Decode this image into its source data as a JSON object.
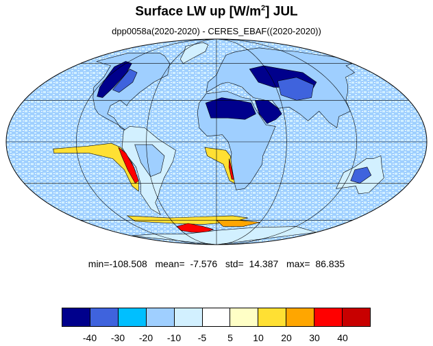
{
  "title": {
    "main": "Surface LW up [W/m",
    "sup": "2",
    "tail": "]  JUL"
  },
  "subtitle": "dpp0058a(2020-2020) - CERES_EBAF((2020-2020))",
  "stats": {
    "min_label": "min=",
    "min": "-108.508",
    "mean_label": "mean=",
    "mean": "-7.576",
    "std_label": "std=",
    "std": "14.387",
    "max_label": "max=",
    "max": "86.835"
  },
  "colorbar": {
    "colors": [
      "#00008c",
      "#3f63dd",
      "#00bfff",
      "#9fcfff",
      "#d2f0ff",
      "#ffffff",
      "#ffffc6",
      "#ffe033",
      "#ffa600",
      "#ff0000",
      "#c80000"
    ],
    "labels": [
      "-40",
      "-30",
      "-20",
      "-10",
      "-5",
      "5",
      "10",
      "20",
      "30",
      "40"
    ]
  },
  "map": {
    "projection": "mollweide",
    "graticule_lon": [
      -120,
      -60,
      0,
      60,
      120
    ],
    "graticule_lat": [
      -60,
      -30,
      0,
      30,
      60
    ],
    "features": [
      {
        "name": "north-america",
        "fill": "#9fcfff",
        "pts": [
          [
            -165,
            62
          ],
          [
            -150,
            70
          ],
          [
            -125,
            70
          ],
          [
            -95,
            70
          ],
          [
            -80,
            67
          ],
          [
            -62,
            60
          ],
          [
            -55,
            50
          ],
          [
            -66,
            44
          ],
          [
            -75,
            36
          ],
          [
            -81,
            29
          ],
          [
            -82,
            26
          ],
          [
            -90,
            30
          ],
          [
            -97,
            26
          ],
          [
            -97,
            20
          ],
          [
            -90,
            17
          ],
          [
            -83,
            10
          ],
          [
            -78,
            8
          ],
          [
            -85,
            12
          ],
          [
            -95,
            16
          ],
          [
            -105,
            20
          ],
          [
            -110,
            24
          ],
          [
            -117,
            32
          ],
          [
            -124,
            40
          ],
          [
            -124,
            48
          ],
          [
            -135,
            58
          ],
          [
            -150,
            60
          ]
        ]
      },
      {
        "name": "na-dark-west",
        "fill": "#00008c",
        "pts": [
          [
            -125,
            62
          ],
          [
            -112,
            60
          ],
          [
            -104,
            52
          ],
          [
            -104,
            40
          ],
          [
            -108,
            32
          ],
          [
            -114,
            33
          ],
          [
            -118,
            40
          ],
          [
            -122,
            50
          ],
          [
            -128,
            57
          ]
        ]
      },
      {
        "name": "na-blue-center",
        "fill": "#3f63dd",
        "pts": [
          [
            -105,
            55
          ],
          [
            -92,
            52
          ],
          [
            -88,
            44
          ],
          [
            -95,
            36
          ],
          [
            -103,
            38
          ]
        ]
      },
      {
        "name": "greenland",
        "fill": "#d2f0ff",
        "pts": [
          [
            -72,
            78
          ],
          [
            -45,
            83
          ],
          [
            -22,
            80
          ],
          [
            -20,
            72
          ],
          [
            -35,
            65
          ],
          [
            -44,
            60
          ],
          [
            -52,
            64
          ],
          [
            -58,
            72
          ]
        ]
      },
      {
        "name": "south-america",
        "fill": "#d2f0ff",
        "pts": [
          [
            -80,
            8
          ],
          [
            -75,
            11
          ],
          [
            -62,
            10
          ],
          [
            -50,
            2
          ],
          [
            -35,
            -6
          ],
          [
            -38,
            -14
          ],
          [
            -48,
            -26
          ],
          [
            -55,
            -35
          ],
          [
            -58,
            -39
          ],
          [
            -65,
            -45
          ],
          [
            -68,
            -55
          ],
          [
            -74,
            -50
          ],
          [
            -75,
            -38
          ],
          [
            -71,
            -30
          ],
          [
            -71,
            -18
          ],
          [
            -77,
            -10
          ],
          [
            -81,
            -4
          ]
        ]
      },
      {
        "name": "sa-blue",
        "fill": "#9fcfff",
        "pts": [
          [
            -70,
            -2
          ],
          [
            -55,
            -2
          ],
          [
            -45,
            -10
          ],
          [
            -50,
            -22
          ],
          [
            -60,
            -25
          ],
          [
            -66,
            -15
          ]
        ]
      },
      {
        "name": "europe-asia",
        "fill": "#9fcfff",
        "pts": [
          [
            -10,
            36
          ],
          [
            -9,
            44
          ],
          [
            0,
            50
          ],
          [
            5,
            58
          ],
          [
            15,
            68
          ],
          [
            30,
            71
          ],
          [
            60,
            74
          ],
          [
            90,
            76
          ],
          [
            120,
            73
          ],
          [
            140,
            72
          ],
          [
            165,
            68
          ],
          [
            180,
            66
          ],
          [
            180,
            60
          ],
          [
            165,
            58
          ],
          [
            160,
            52
          ],
          [
            142,
            48
          ],
          [
            135,
            42
          ],
          [
            128,
            36
          ],
          [
            121,
            30
          ],
          [
            120,
            22
          ],
          [
            108,
            18
          ],
          [
            104,
            10
          ],
          [
            98,
            14
          ],
          [
            92,
            22
          ],
          [
            80,
            15
          ],
          [
            74,
            20
          ],
          [
            66,
            25
          ],
          [
            56,
            24
          ],
          [
            52,
            30
          ],
          [
            46,
            30
          ],
          [
            35,
            32
          ],
          [
            30,
            36
          ],
          [
            26,
            40
          ],
          [
            20,
            42
          ],
          [
            12,
            44
          ],
          [
            6,
            43
          ],
          [
            3,
            42
          ]
        ]
      },
      {
        "name": "asia-dark",
        "fill": "#00008c",
        "pts": [
          [
            40,
            55
          ],
          [
            60,
            58
          ],
          [
            80,
            55
          ],
          [
            100,
            52
          ],
          [
            105,
            44
          ],
          [
            95,
            38
          ],
          [
            75,
            40
          ],
          [
            58,
            40
          ],
          [
            44,
            44
          ]
        ]
      },
      {
        "name": "asia-mid",
        "fill": "#3f63dd",
        "pts": [
          [
            65,
            45
          ],
          [
            88,
            48
          ],
          [
            100,
            42
          ],
          [
            90,
            32
          ],
          [
            75,
            30
          ],
          [
            62,
            34
          ]
        ]
      },
      {
        "name": "africa",
        "fill": "#9fcfff",
        "pts": [
          [
            -17,
            21
          ],
          [
            -16,
            28
          ],
          [
            -10,
            35
          ],
          [
            10,
            37
          ],
          [
            25,
            32
          ],
          [
            32,
            31
          ],
          [
            35,
            24
          ],
          [
            43,
            12
          ],
          [
            51,
            11
          ],
          [
            45,
            0
          ],
          [
            40,
            -10
          ],
          [
            40,
            -16
          ],
          [
            35,
            -24
          ],
          [
            32,
            -29
          ],
          [
            27,
            -34
          ],
          [
            19,
            -35
          ],
          [
            17,
            -30
          ],
          [
            12,
            -18
          ],
          [
            13,
            -8
          ],
          [
            10,
            0
          ],
          [
            5,
            5
          ],
          [
            -8,
            4
          ],
          [
            -15,
            10
          ]
        ]
      },
      {
        "name": "sahara-dark",
        "fill": "#00008c",
        "pts": [
          [
            -10,
            28
          ],
          [
            5,
            32
          ],
          [
            20,
            30
          ],
          [
            32,
            28
          ],
          [
            35,
            20
          ],
          [
            25,
            16
          ],
          [
            10,
            17
          ],
          [
            -5,
            17
          ]
        ]
      },
      {
        "name": "arabia",
        "fill": "#00008c",
        "pts": [
          [
            36,
            30
          ],
          [
            48,
            30
          ],
          [
            56,
            24
          ],
          [
            58,
            20
          ],
          [
            52,
            16
          ],
          [
            44,
            13
          ],
          [
            38,
            20
          ]
        ]
      },
      {
        "name": "australia",
        "fill": "#d2f0ff",
        "pts": [
          [
            114,
            -22
          ],
          [
            122,
            -18
          ],
          [
            130,
            -12
          ],
          [
            136,
            -12
          ],
          [
            142,
            -10
          ],
          [
            146,
            -18
          ],
          [
            153,
            -26
          ],
          [
            150,
            -37
          ],
          [
            141,
            -38
          ],
          [
            132,
            -32
          ],
          [
            124,
            -33
          ],
          [
            115,
            -34
          ]
        ]
      },
      {
        "name": "australia-center",
        "fill": "#3f63dd",
        "pts": [
          [
            123,
            -20
          ],
          [
            133,
            -18
          ],
          [
            140,
            -24
          ],
          [
            134,
            -30
          ],
          [
            124,
            -28
          ]
        ]
      },
      {
        "name": "peru-upwelling",
        "fill": "#ffe033",
        "pts": [
          [
            -140,
            -5
          ],
          [
            -110,
            -3
          ],
          [
            -90,
            -1
          ],
          [
            -82,
            -4
          ],
          [
            -74,
            -15
          ],
          [
            -72,
            -28
          ],
          [
            -76,
            -36
          ],
          [
            -80,
            -32
          ],
          [
            -82,
            -20
          ],
          [
            -90,
            -12
          ],
          [
            -110,
            -8
          ],
          [
            -140,
            -8
          ]
        ]
      },
      {
        "name": "peru-red",
        "fill": "#ff0000",
        "pts": [
          [
            -84,
            -4
          ],
          [
            -78,
            -8
          ],
          [
            -73,
            -18
          ],
          [
            -72,
            -28
          ],
          [
            -76,
            -30
          ],
          [
            -79,
            -20
          ],
          [
            -82,
            -10
          ]
        ]
      },
      {
        "name": "benguela-upwelling",
        "fill": "#ffe033",
        "pts": [
          [
            -10,
            -4
          ],
          [
            8,
            -6
          ],
          [
            12,
            -10
          ],
          [
            14,
            -20
          ],
          [
            17,
            -30
          ],
          [
            12,
            -28
          ],
          [
            6,
            -16
          ],
          [
            -8,
            -10
          ]
        ]
      },
      {
        "name": "benguela-red",
        "fill": "#ff0000",
        "pts": [
          [
            11,
            -12
          ],
          [
            13,
            -18
          ],
          [
            16,
            -27
          ],
          [
            14,
            -27
          ],
          [
            11,
            -18
          ]
        ]
      },
      {
        "name": "southern-ocean-yellow",
        "fill": "#ffe033",
        "pts": [
          [
            -110,
            -56
          ],
          [
            -60,
            -58
          ],
          [
            -20,
            -57
          ],
          [
            20,
            -56
          ],
          [
            40,
            -58
          ],
          [
            20,
            -62
          ],
          [
            -20,
            -64
          ],
          [
            -60,
            -63
          ],
          [
            -110,
            -61
          ]
        ]
      },
      {
        "name": "antarctic-red",
        "fill": "#ff0000",
        "pts": [
          [
            -60,
            -66
          ],
          [
            -40,
            -63
          ],
          [
            -20,
            -66
          ],
          [
            -5,
            -69
          ],
          [
            -20,
            -72
          ],
          [
            -45,
            -72
          ],
          [
            -60,
            -70
          ]
        ]
      },
      {
        "name": "antarctic-orange",
        "fill": "#ffa600",
        "pts": [
          [
            0,
            -60
          ],
          [
            30,
            -60
          ],
          [
            60,
            -62
          ],
          [
            40,
            -66
          ],
          [
            10,
            -66
          ]
        ]
      },
      {
        "name": "antarctica",
        "fill": "#d2f0ff",
        "pts": [
          [
            -180,
            -76
          ],
          [
            -120,
            -74
          ],
          [
            -60,
            -74
          ],
          [
            0,
            -70
          ],
          [
            60,
            -67
          ],
          [
            120,
            -66
          ],
          [
            180,
            -72
          ],
          [
            180,
            -90
          ],
          [
            -180,
            -90
          ]
        ]
      }
    ]
  }
}
